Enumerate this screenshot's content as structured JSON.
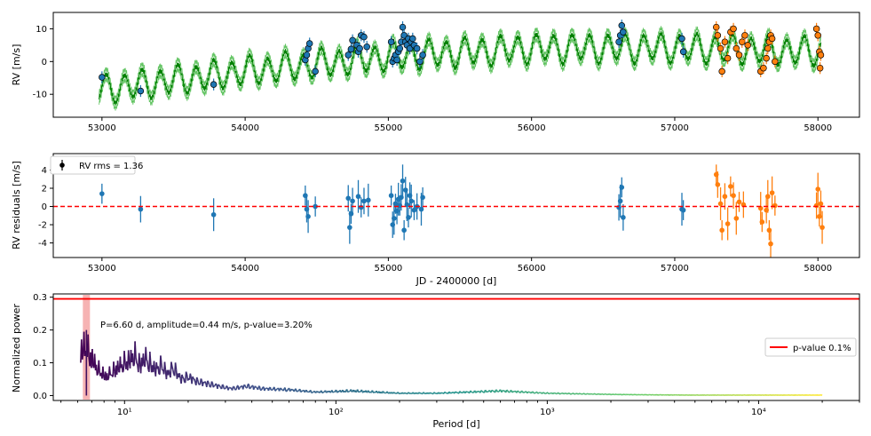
{
  "chart_data": [
    {
      "type": "scatter",
      "panel": "rv",
      "ylabel": "RV [m/s]",
      "xlim": [
        52660,
        58290
      ],
      "ylim": [
        -17,
        15
      ],
      "xticks": [
        53000,
        54000,
        55000,
        56000,
        57000,
        58000
      ],
      "yticks": [
        -10,
        0,
        10
      ],
      "grid": false,
      "model": {
        "color": "#008000",
        "trend": {
          "x": [
            53000,
            54000,
            55000,
            56000,
            57000,
            58000
          ],
          "y": [
            -8.5,
            -3,
            1.5,
            4,
            4.2,
            3
          ]
        },
        "period_d": 125,
        "amplitude": 4
      },
      "series": [
        {
          "color": "#1f77b4",
          "points": [
            [
              53000,
              -4.8
            ],
            [
              53270,
              -9
            ],
            [
              53780,
              -7
            ],
            [
              54420,
              0.5
            ],
            [
              54430,
              2
            ],
            [
              54440,
              4
            ],
            [
              54450,
              5.5
            ],
            [
              54490,
              -3
            ],
            [
              54720,
              2
            ],
            [
              54740,
              3.8
            ],
            [
              54750,
              6.5
            ],
            [
              54780,
              5
            ],
            [
              54790,
              3
            ],
            [
              54800,
              4
            ],
            [
              54810,
              8
            ],
            [
              54830,
              7.5
            ],
            [
              54850,
              4.5
            ],
            [
              55020,
              6
            ],
            [
              55030,
              0
            ],
            [
              55040,
              1
            ],
            [
              55050,
              2
            ],
            [
              55060,
              0.5
            ],
            [
              55070,
              3
            ],
            [
              55080,
              4
            ],
            [
              55090,
              6
            ],
            [
              55100,
              10.5
            ],
            [
              55110,
              8
            ],
            [
              55120,
              6
            ],
            [
              55130,
              5
            ],
            [
              55140,
              7
            ],
            [
              55150,
              4
            ],
            [
              55160,
              6
            ],
            [
              55170,
              7
            ],
            [
              55180,
              5
            ],
            [
              55200,
              4
            ],
            [
              55220,
              0
            ],
            [
              55240,
              2
            ],
            [
              56610,
              6
            ],
            [
              56620,
              8
            ],
            [
              56630,
              11
            ],
            [
              56640,
              9
            ],
            [
              57050,
              7
            ],
            [
              57060,
              3
            ]
          ]
        },
        {
          "color": "#ff7f0e",
          "points": [
            [
              57290,
              10.5
            ],
            [
              57300,
              8
            ],
            [
              57320,
              4
            ],
            [
              57330,
              -3
            ],
            [
              57350,
              6
            ],
            [
              57370,
              1
            ],
            [
              57390,
              9
            ],
            [
              57410,
              10
            ],
            [
              57430,
              4
            ],
            [
              57450,
              2
            ],
            [
              57470,
              6
            ],
            [
              57490,
              8
            ],
            [
              57510,
              5
            ],
            [
              57600,
              -3
            ],
            [
              57620,
              -2
            ],
            [
              57640,
              1
            ],
            [
              57650,
              4
            ],
            [
              57660,
              6
            ],
            [
              57670,
              8
            ],
            [
              57680,
              7
            ],
            [
              57700,
              0
            ],
            [
              57990,
              10
            ],
            [
              58000,
              8
            ],
            [
              58010,
              3
            ],
            [
              58015,
              -2
            ],
            [
              58020,
              2
            ]
          ]
        }
      ]
    },
    {
      "type": "scatter",
      "panel": "residuals",
      "xlabel": "JD - 2400000 [d]",
      "ylabel": "RV residuals [m/s]",
      "xlim": [
        52660,
        58290
      ],
      "ylim": [
        -5.6,
        5.8
      ],
      "xticks": [
        53000,
        54000,
        55000,
        56000,
        57000,
        58000
      ],
      "yticks": [
        -4,
        -2,
        0,
        2,
        4
      ],
      "reference_line": {
        "y": 0,
        "color": "#ff0000",
        "style": "dashed"
      },
      "legend": {
        "label": "RV rms = 1.36",
        "position": "upper-left"
      },
      "series": [
        {
          "color": "#1f77b4",
          "points": [
            [
              53000,
              1.4
            ],
            [
              53270,
              -0.3
            ],
            [
              53780,
              -0.9
            ],
            [
              54420,
              1.2
            ],
            [
              54430,
              -0.3
            ],
            [
              54440,
              -1.1
            ],
            [
              54490,
              0
            ],
            [
              54720,
              0.9
            ],
            [
              54730,
              -2.3
            ],
            [
              54740,
              -0.8
            ],
            [
              54750,
              0.6
            ],
            [
              54790,
              1.1
            ],
            [
              54810,
              -0.1
            ],
            [
              54830,
              0.6
            ],
            [
              54860,
              0.7
            ],
            [
              55020,
              1.2
            ],
            [
              55030,
              -2
            ],
            [
              55040,
              -1.3
            ],
            [
              55050,
              0.3
            ],
            [
              55060,
              -0.5
            ],
            [
              55070,
              0.8
            ],
            [
              55080,
              0.1
            ],
            [
              55090,
              1
            ],
            [
              55100,
              2.8
            ],
            [
              55110,
              -2.6
            ],
            [
              55120,
              1.8
            ],
            [
              55130,
              0.2
            ],
            [
              55140,
              -1.2
            ],
            [
              55150,
              1.2
            ],
            [
              55160,
              0.6
            ],
            [
              55180,
              -0.4
            ],
            [
              55200,
              0
            ],
            [
              55230,
              -0.3
            ],
            [
              55240,
              1
            ],
            [
              56610,
              -0.1
            ],
            [
              56620,
              0.6
            ],
            [
              56630,
              2.1
            ],
            [
              56640,
              -1.2
            ],
            [
              57050,
              -0.3
            ],
            [
              57060,
              -0.4
            ]
          ]
        },
        {
          "color": "#ff7f0e",
          "points": [
            [
              57290,
              3.5
            ],
            [
              57300,
              2.4
            ],
            [
              57320,
              0.3
            ],
            [
              57330,
              -2.6
            ],
            [
              57350,
              1.1
            ],
            [
              57370,
              -1.9
            ],
            [
              57390,
              2.2
            ],
            [
              57410,
              1.2
            ],
            [
              57430,
              -1.3
            ],
            [
              57450,
              0.5
            ],
            [
              57480,
              0.2
            ],
            [
              57600,
              -0.2
            ],
            [
              57610,
              -1.7
            ],
            [
              57640,
              -0.4
            ],
            [
              57650,
              1.1
            ],
            [
              57660,
              -2.6
            ],
            [
              57670,
              -4.1
            ],
            [
              57680,
              1.5
            ],
            [
              57700,
              0.1
            ],
            [
              57990,
              0.1
            ],
            [
              58000,
              1.9
            ],
            [
              58010,
              -1.1
            ],
            [
              58020,
              0.3
            ],
            [
              58030,
              -2.3
            ]
          ]
        }
      ]
    },
    {
      "type": "line",
      "panel": "periodogram",
      "xlabel": "Period [d]",
      "ylabel": "Normalized power",
      "xscale": "log",
      "xlim": [
        4.6,
        30000
      ],
      "ylim": [
        -0.015,
        0.31
      ],
      "xticks": [
        10,
        100,
        1000,
        10000
      ],
      "xtick_labels": [
        "10¹",
        "10²",
        "10³",
        "10⁴"
      ],
      "yticks": [
        0.0,
        0.1,
        0.2,
        0.3
      ],
      "ytick_labels": [
        "0.0",
        "0.1",
        "0.2",
        "0.3"
      ],
      "threshold": {
        "value": 0.295,
        "label": "p-value 0.1%",
        "color": "#ff0000"
      },
      "highlight": {
        "period": 6.6,
        "color": "#f08080"
      },
      "annotation": "P=6.60 d, amplitude=0.44 m/s, p-value=3.20%",
      "legend": {
        "label": "p-value 0.1%",
        "position": "center-right"
      },
      "colormap": "viridis",
      "peaks": [
        [
          6.6,
          0.2
        ],
        [
          7.5,
          0.11
        ],
        [
          8.2,
          0.08
        ],
        [
          9.3,
          0.12
        ],
        [
          10.5,
          0.15
        ],
        [
          11.2,
          0.17
        ],
        [
          11.8,
          0.13
        ],
        [
          12.5,
          0.16
        ],
        [
          13.1,
          0.14
        ],
        [
          14,
          0.11
        ],
        [
          15,
          0.13
        ],
        [
          16,
          0.09
        ],
        [
          17,
          0.12
        ],
        [
          18.5,
          0.07
        ],
        [
          20,
          0.08
        ],
        [
          22,
          0.06
        ],
        [
          25,
          0.05
        ],
        [
          28,
          0.04
        ],
        [
          32,
          0.03
        ],
        [
          38,
          0.04
        ],
        [
          45,
          0.03
        ],
        [
          60,
          0.025
        ],
        [
          80,
          0.015
        ],
        [
          120,
          0.02
        ],
        [
          200,
          0.01
        ],
        [
          300,
          0.01
        ],
        [
          600,
          0.02
        ],
        [
          1000,
          0.01
        ],
        [
          2000,
          0.005
        ]
      ]
    }
  ]
}
